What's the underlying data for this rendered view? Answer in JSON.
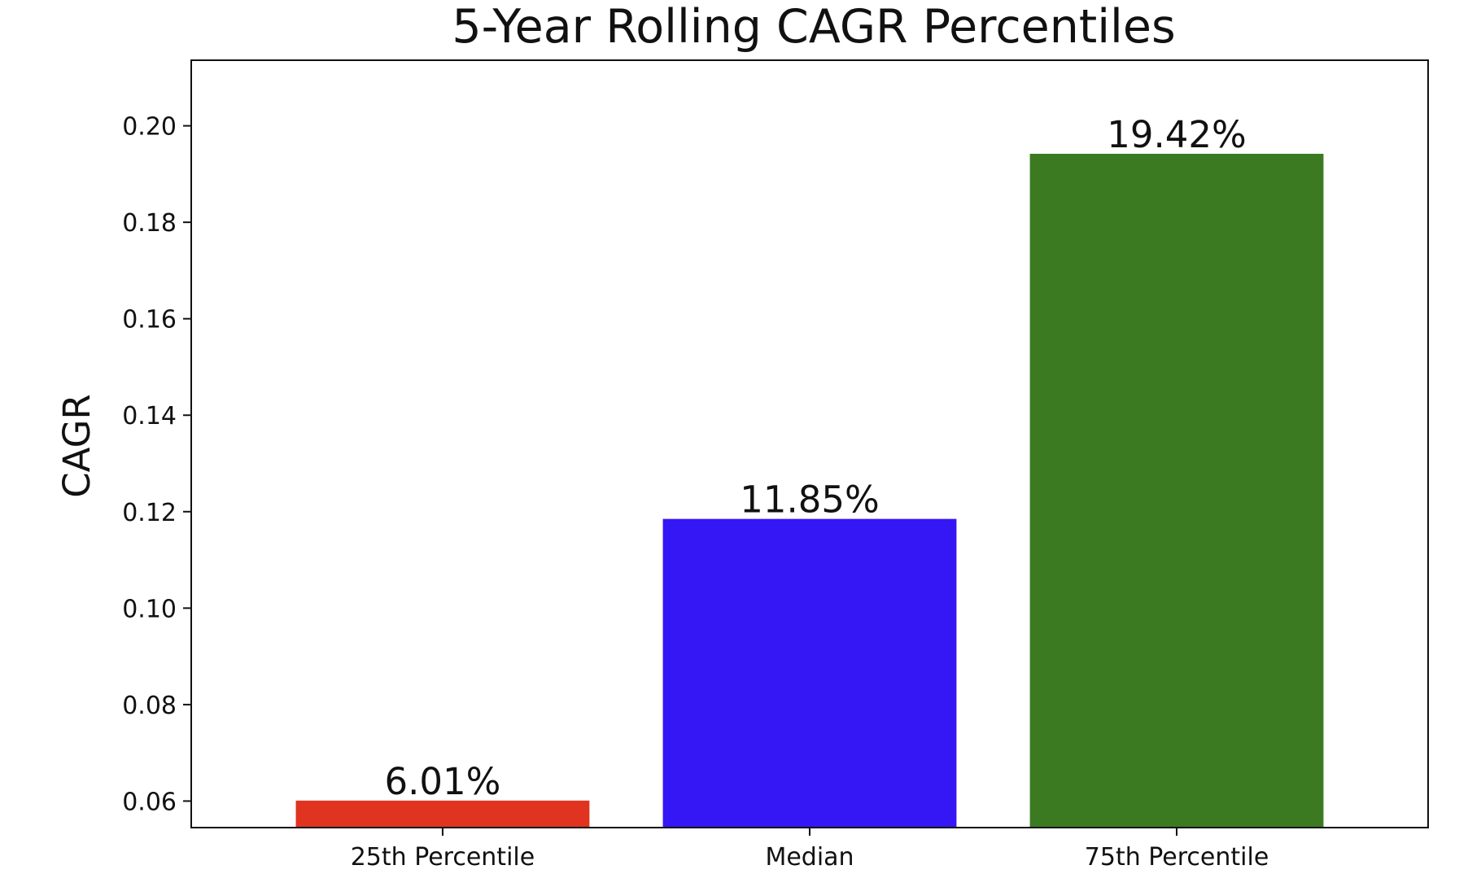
{
  "chart_data": {
    "type": "bar",
    "title": "5-Year Rolling CAGR Percentiles",
    "xlabel": "",
    "ylabel": "CAGR",
    "categories": [
      "25th Percentile",
      "Median",
      "75th Percentile"
    ],
    "values": [
      0.0601,
      0.1185,
      0.1942
    ],
    "value_labels": [
      "6.01%",
      "11.85%",
      "19.42%"
    ],
    "colors": [
      "#e03420",
      "#3516f5",
      "#3c7a22"
    ],
    "ylim": [
      0.0545,
      0.2136
    ],
    "yticks": [
      0.06,
      0.08,
      0.1,
      0.12,
      0.14,
      0.16,
      0.18,
      0.2
    ],
    "ytick_labels": [
      "0.06",
      "0.08",
      "0.10",
      "0.12",
      "0.14",
      "0.16",
      "0.18",
      "0.20"
    ],
    "grid": false,
    "legend": "none"
  }
}
